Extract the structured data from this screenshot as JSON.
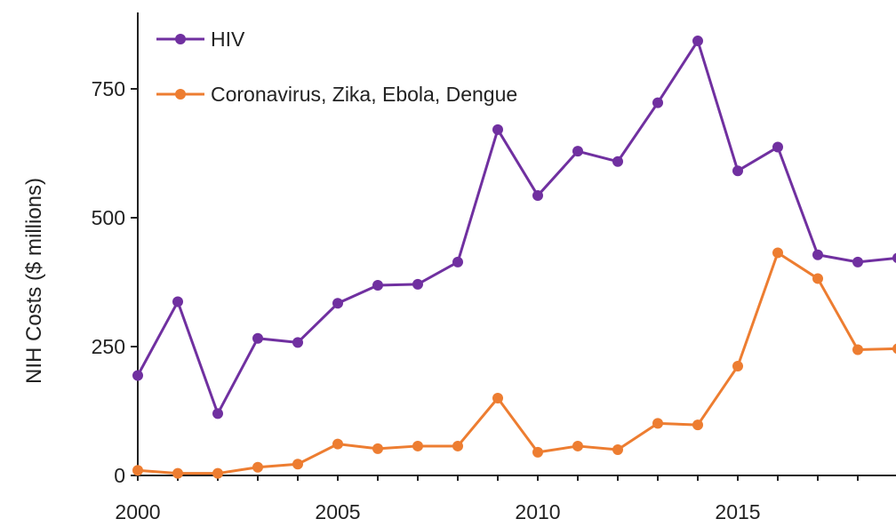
{
  "chart_data": {
    "type": "line",
    "title": "",
    "xlabel": "",
    "ylabel": "NIH Costs ($ millions)",
    "xlim": [
      2000,
      2019
    ],
    "ylim": [
      0,
      900
    ],
    "x_ticks": [
      2000,
      2005,
      2010,
      2015
    ],
    "y_ticks": [
      0,
      250,
      500,
      750
    ],
    "grid": false,
    "legend_position": "top-left",
    "x": [
      2000,
      2001,
      2002,
      2003,
      2004,
      2005,
      2006,
      2007,
      2008,
      2009,
      2010,
      2011,
      2012,
      2013,
      2014,
      2015,
      2016,
      2017,
      2018,
      2019
    ],
    "series": [
      {
        "name": "HIV",
        "color": "#7030a0",
        "marker": "circle",
        "values": [
          194,
          337,
          120,
          266,
          258,
          334,
          369,
          371,
          414,
          671,
          543,
          629,
          609,
          723,
          843,
          591,
          637,
          428,
          414,
          422
        ]
      },
      {
        "name": "Coronavirus, Zika, Ebola, Dengue",
        "color": "#ed7d31",
        "marker": "circle",
        "values": [
          10,
          4,
          4,
          16,
          22,
          61,
          52,
          57,
          57,
          150,
          45,
          57,
          50,
          101,
          98,
          212,
          432,
          382,
          244,
          246
        ]
      }
    ]
  }
}
